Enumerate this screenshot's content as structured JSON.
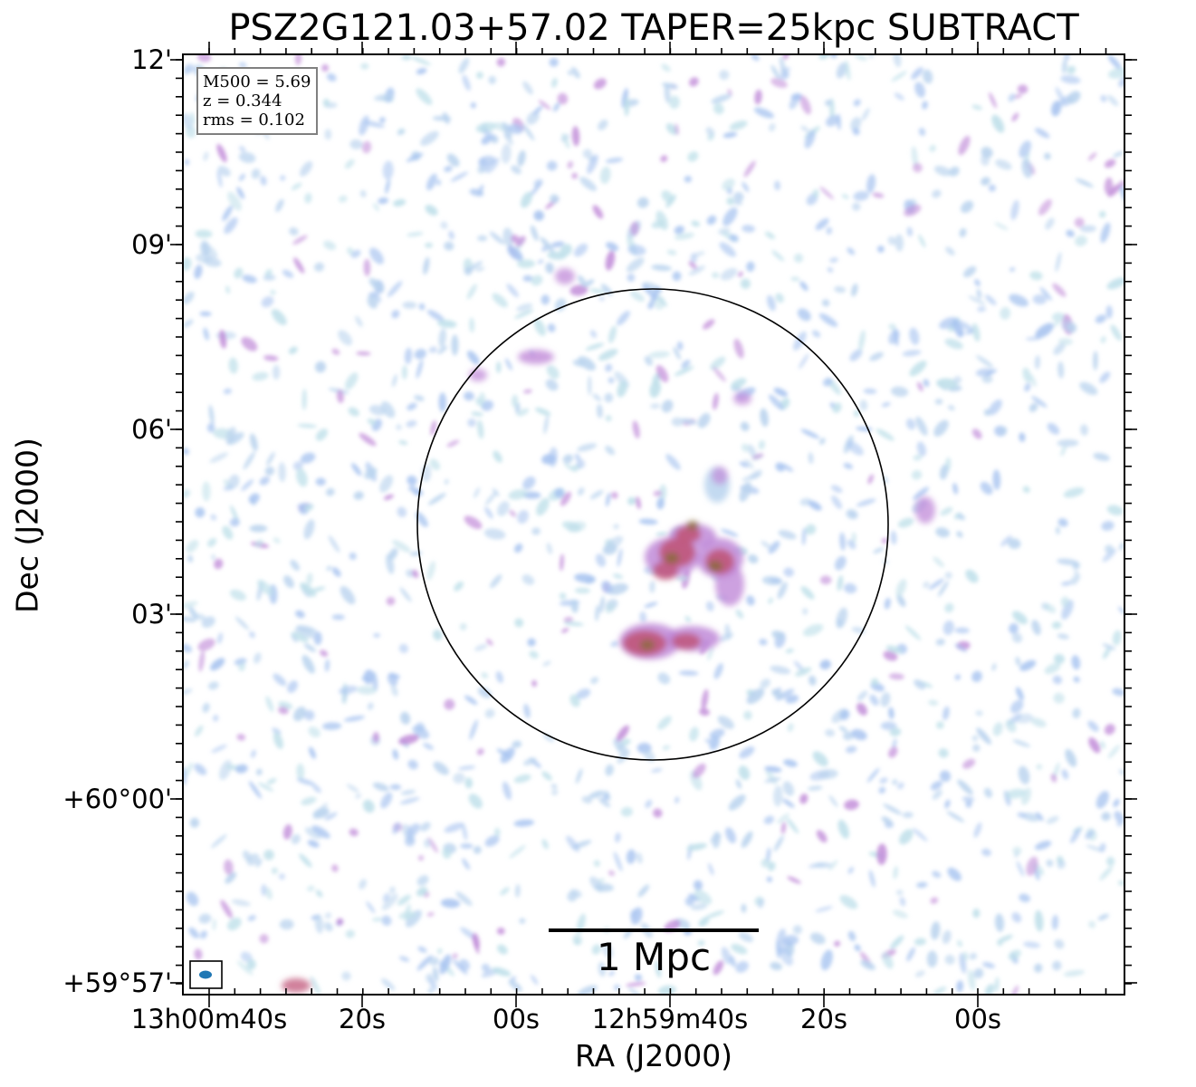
{
  "title": "PSZ2G121.03+57.02 TAPER=25kpc SUBTRACT",
  "axes": {
    "x_label": "RA (J2000)",
    "y_label": "Dec (J2000)",
    "x_ticks": [
      "13h00m40s",
      "20s",
      "00s",
      "12h59m40s",
      "20s",
      "00s"
    ],
    "y_ticks": [
      "12'",
      "09'",
      "06'",
      "03'",
      "+60°00'",
      "+59°57'"
    ]
  },
  "info_box": {
    "lines": [
      "M500 = 5.69",
      "z = 0.344",
      "rms = 0.102"
    ]
  },
  "scale_bar": {
    "label": "1 Mpc"
  },
  "colors": {
    "background": "#ffffff",
    "axes": "#000000",
    "low_emission": "#b9d3ee",
    "mid_emission": "#c08ad8",
    "high_emission": "#c0567a",
    "peak_emission": "#8a6a3a",
    "info_border": "#808080",
    "beam": "#1f77b4"
  }
}
